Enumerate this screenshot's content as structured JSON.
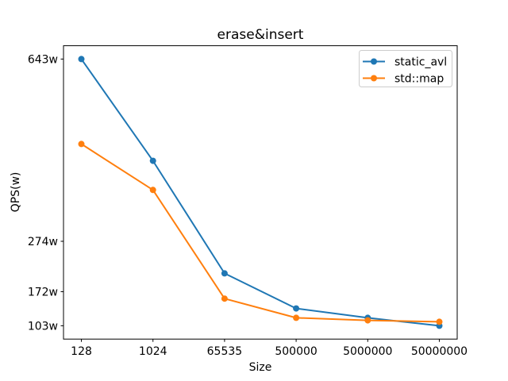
{
  "figure": {
    "background": "#ffffff"
  },
  "chart_data": {
    "type": "line",
    "title": "erase&insert",
    "xlabel": "Size",
    "ylabel": "QPS(w)",
    "categories": [
      "128",
      "1024",
      "65535",
      "500000",
      "5000000",
      "50000000"
    ],
    "series": [
      {
        "name": "static_avl",
        "color": "#1f77b4",
        "values": [
          643,
          437,
          209,
          138,
          119,
          103
        ]
      },
      {
        "name": "std::map",
        "color": "#ff7f0e",
        "values": [
          471,
          378,
          158,
          119,
          114,
          111
        ]
      }
    ],
    "yticks": [
      {
        "value": 643,
        "label": "643w"
      },
      {
        "value": 274,
        "label": "274w"
      },
      {
        "value": 172,
        "label": "172w"
      },
      {
        "value": 103,
        "label": "103w"
      }
    ],
    "ylim": [
      76,
      670
    ],
    "legend_position": "upper right",
    "grid": false,
    "marker": "circle",
    "spine_color": "#000000",
    "legend_border_color": "#cccccc",
    "legend_background": "#ffffff"
  }
}
